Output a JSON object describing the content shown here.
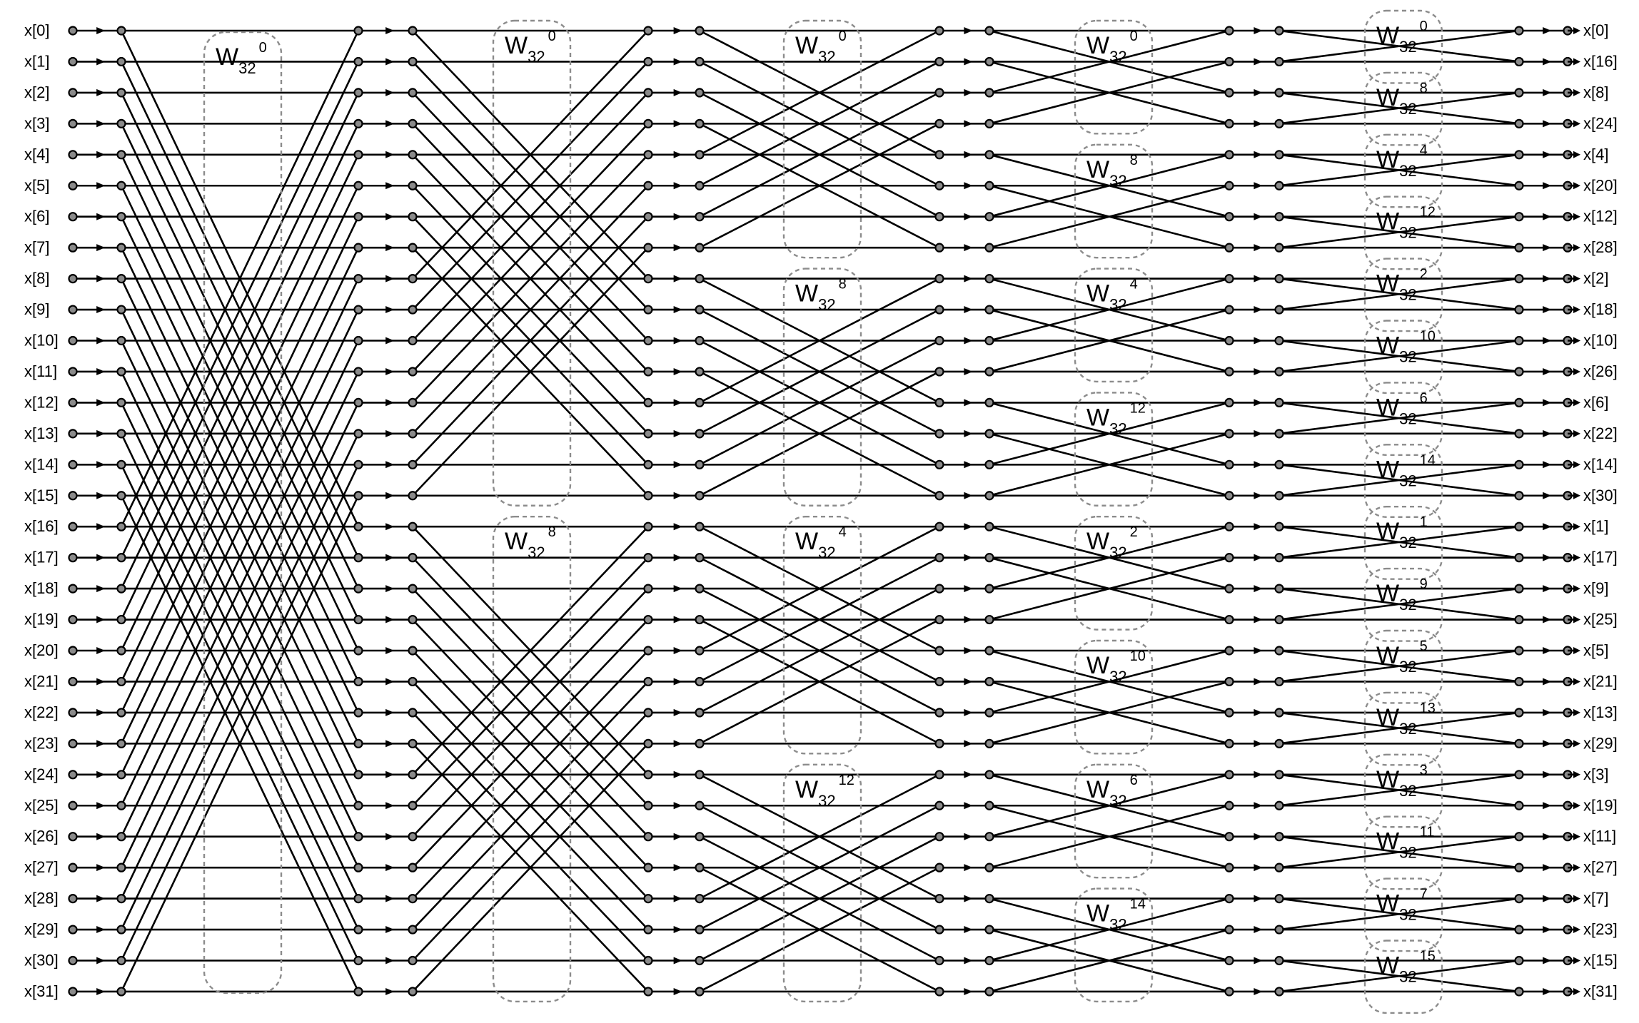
{
  "diagram": {
    "input_labels": [
      "x[0]",
      "x[1]",
      "x[2]",
      "x[3]",
      "x[4]",
      "x[5]",
      "x[6]",
      "x[7]",
      "x[8]",
      "x[9]",
      "x[10]",
      "x[11]",
      "x[12]",
      "x[13]",
      "x[14]",
      "x[15]",
      "x[16]",
      "x[17]",
      "x[18]",
      "x[19]",
      "x[20]",
      "x[21]",
      "x[22]",
      "x[23]",
      "x[24]",
      "x[25]",
      "x[26]",
      "x[27]",
      "x[28]",
      "x[29]",
      "x[30]",
      "x[31]"
    ],
    "output_labels": [
      "x[0]",
      "x[16]",
      "x[8]",
      "x[24]",
      "x[4]",
      "x[20]",
      "x[12]",
      "x[28]",
      "x[2]",
      "x[18]",
      "x[10]",
      "x[26]",
      "x[6]",
      "x[22]",
      "x[14]",
      "x[30]",
      "x[1]",
      "x[17]",
      "x[9]",
      "x[25]",
      "x[5]",
      "x[21]",
      "x[13]",
      "x[29]",
      "x[3]",
      "x[19]",
      "x[11]",
      "x[27]",
      "x[7]",
      "x[23]",
      "x[15]",
      "x[31]"
    ],
    "twiddle_base": "W",
    "twiddle_subscript": "32",
    "stages": [
      {
        "block_size": 32,
        "twiddles": [
          "0"
        ]
      },
      {
        "block_size": 16,
        "twiddles": [
          "0",
          "8"
        ]
      },
      {
        "block_size": 8,
        "twiddles": [
          "0",
          "8",
          "4",
          "12"
        ]
      },
      {
        "block_size": 4,
        "twiddles": [
          "0",
          "8",
          "4",
          "12",
          "2",
          "10",
          "6",
          "14"
        ]
      },
      {
        "block_size": 2,
        "twiddles": [
          "0",
          "8",
          "4",
          "12",
          "2",
          "10",
          "6",
          "14",
          "1",
          "9",
          "5",
          "13",
          "3",
          "11",
          "7",
          "15"
        ]
      }
    ]
  }
}
